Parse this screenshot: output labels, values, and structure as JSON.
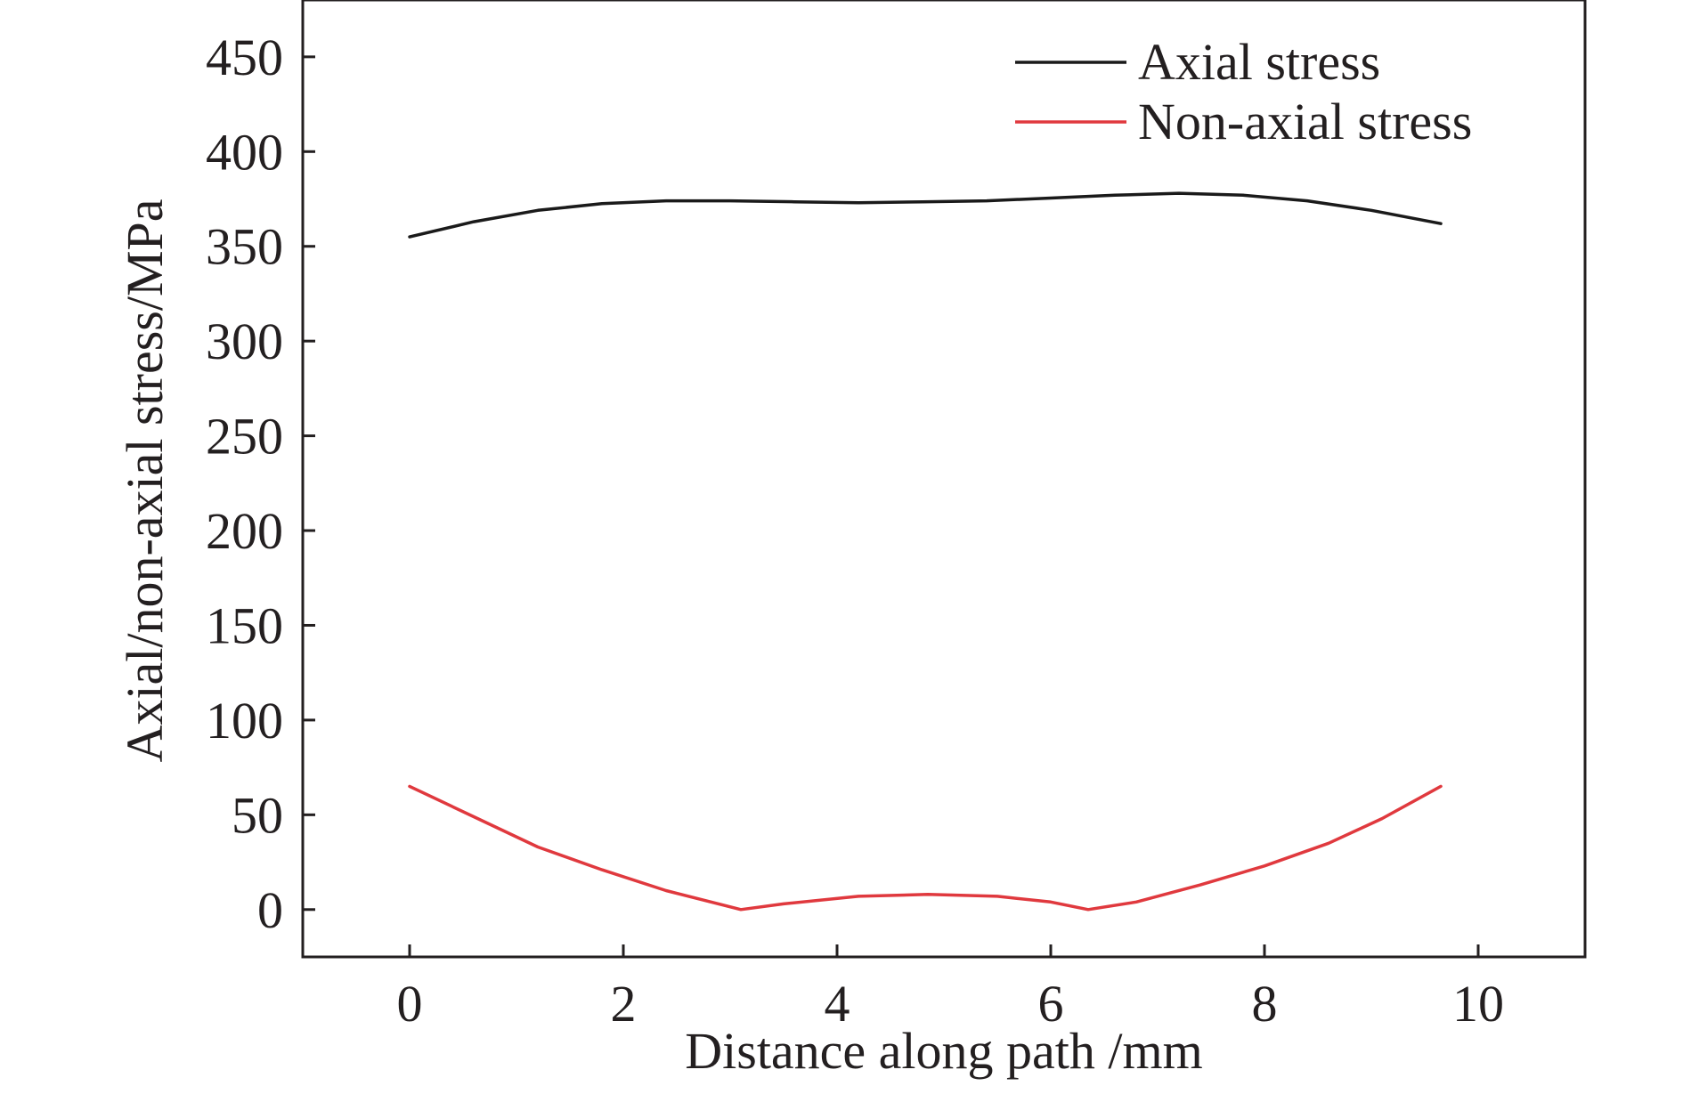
{
  "chart_data": {
    "type": "line",
    "title": "",
    "xlabel": "Distance along path /mm",
    "ylabel": "Axial/non-axial stress/MPa",
    "xlim": [
      -1,
      11
    ],
    "ylim": [
      -25,
      480
    ],
    "xticks": [
      0,
      2,
      4,
      6,
      8,
      10
    ],
    "yticks": [
      0,
      50,
      100,
      150,
      200,
      250,
      300,
      350,
      400,
      450
    ],
    "grid": false,
    "legend_position": "top-right",
    "series": [
      {
        "name": "Axial stress",
        "color": "#1a1a1a",
        "x": [
          0,
          0.6,
          1.2,
          1.8,
          2.4,
          3.0,
          3.6,
          4.2,
          4.8,
          5.4,
          6.0,
          6.6,
          7.2,
          7.8,
          8.4,
          9.0,
          9.65
        ],
        "y": [
          355,
          363,
          369,
          372.5,
          374,
          374,
          373.5,
          373,
          373.5,
          374,
          375.5,
          377,
          378,
          377,
          374,
          369,
          362
        ]
      },
      {
        "name": "Non-axial stress",
        "color": "#e0393e",
        "x": [
          0,
          0.6,
          1.2,
          1.8,
          2.4,
          3.1,
          3.5,
          4.2,
          4.85,
          5.5,
          6.0,
          6.35,
          6.8,
          7.4,
          8.0,
          8.6,
          9.1,
          9.65
        ],
        "y": [
          65,
          49,
          33,
          21,
          10,
          0,
          3,
          7,
          8,
          7,
          4,
          0,
          4,
          13,
          23,
          35,
          48,
          65
        ]
      }
    ]
  }
}
